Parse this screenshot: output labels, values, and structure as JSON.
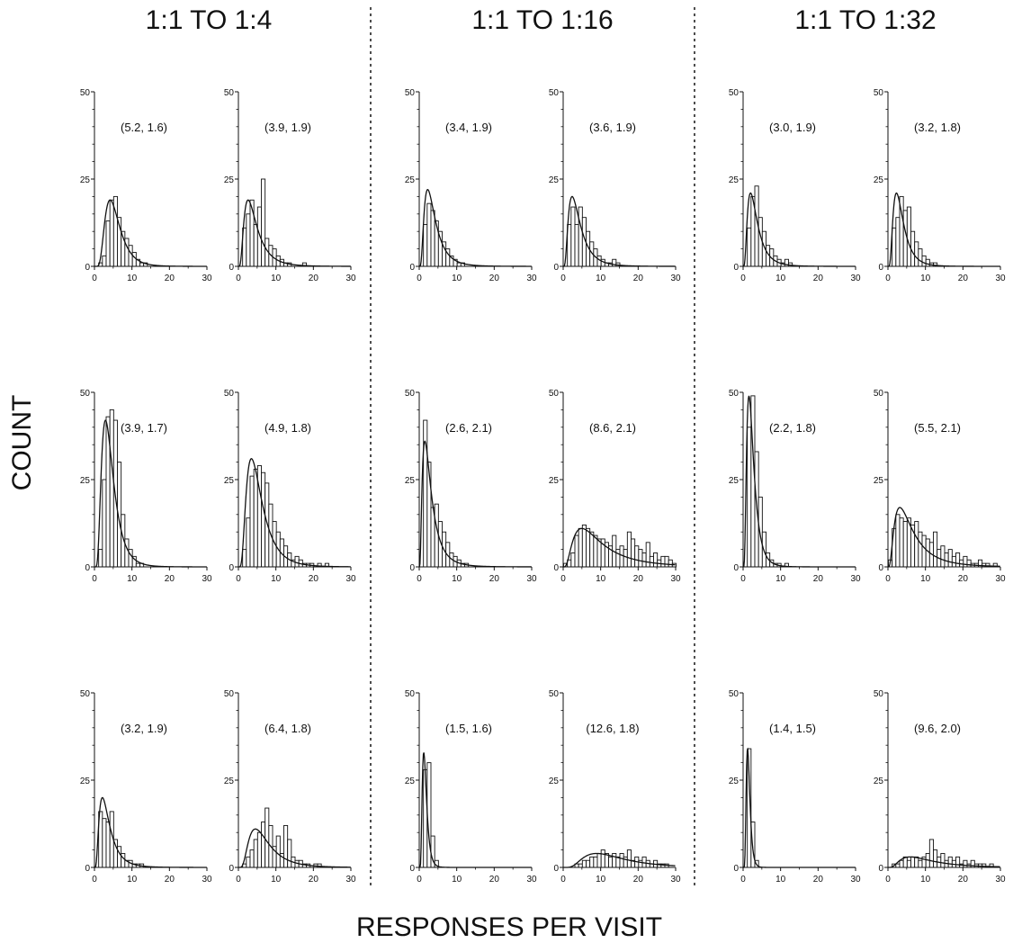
{
  "figure": {
    "column_titles": [
      "1:1 TO 1:4",
      "1:1 TO 1:16",
      "1:1 TO 1:32"
    ],
    "xlabel": "RESPONSES PER VISIT",
    "ylabel": "COUNT"
  },
  "chart_data": [
    {
      "type": "bar",
      "column": "1:1 TO 1:4",
      "annotation": "(5.2, 1.6)",
      "fit": {
        "peak": 19,
        "sigma": 1.6
      },
      "bins": [
        0,
        1,
        2,
        3,
        4,
        5,
        6,
        7,
        8,
        9,
        10,
        11,
        12,
        13,
        14,
        15
      ],
      "values": [
        0,
        1,
        3,
        13,
        19,
        20,
        14,
        10,
        8,
        6,
        4,
        2,
        1,
        1,
        0,
        0
      ],
      "xlim": [
        0,
        30
      ],
      "ylim": [
        0,
        50
      ],
      "xticks": [
        0,
        10,
        20,
        30
      ],
      "yticks": [
        0,
        25,
        50
      ]
    },
    {
      "type": "bar",
      "column": "1:1 TO 1:4",
      "annotation": "(3.9, 1.9)",
      "fit": {
        "peak": 19,
        "sigma": 1.9
      },
      "bins": [
        0,
        1,
        2,
        3,
        4,
        5,
        6,
        7,
        8,
        9,
        10,
        11,
        12,
        13,
        14,
        15,
        16,
        17,
        18
      ],
      "values": [
        0,
        11,
        15,
        19,
        12,
        17,
        25,
        8,
        6,
        5,
        3,
        2,
        1,
        1,
        0,
        0,
        0,
        1,
        0
      ],
      "xlim": [
        0,
        30
      ],
      "ylim": [
        0,
        50
      ],
      "xticks": [
        0,
        10,
        20,
        30
      ],
      "yticks": [
        0,
        25,
        50
      ]
    },
    {
      "type": "bar",
      "column": "1:1 TO 1:16",
      "annotation": "(3.4, 1.9)",
      "fit": {
        "peak": 22,
        "sigma": 1.9
      },
      "bins": [
        0,
        1,
        2,
        3,
        4,
        5,
        6,
        7,
        8,
        9,
        10,
        11,
        12,
        13,
        14
      ],
      "values": [
        0,
        12,
        18,
        16,
        13,
        10,
        7,
        5,
        3,
        2,
        1,
        1,
        0,
        0,
        0
      ],
      "xlim": [
        0,
        30
      ],
      "ylim": [
        0,
        50
      ],
      "xticks": [
        0,
        10,
        20,
        30
      ],
      "yticks": [
        0,
        25,
        50
      ]
    },
    {
      "type": "bar",
      "column": "1:1 TO 1:16",
      "annotation": "(3.6, 1.9)",
      "fit": {
        "peak": 20,
        "sigma": 1.9
      },
      "bins": [
        0,
        1,
        2,
        3,
        4,
        5,
        6,
        7,
        8,
        9,
        10,
        11,
        12,
        13,
        14,
        15
      ],
      "values": [
        0,
        12,
        17,
        12,
        17,
        14,
        10,
        7,
        5,
        3,
        2,
        1,
        1,
        2,
        1,
        0
      ],
      "xlim": [
        0,
        30
      ],
      "ylim": [
        0,
        50
      ],
      "xticks": [
        0,
        10,
        20,
        30
      ],
      "yticks": [
        0,
        25,
        50
      ]
    },
    {
      "type": "bar",
      "column": "1:1 TO 1:32",
      "annotation": "(3.0, 1.9)",
      "fit": {
        "peak": 21,
        "sigma": 1.9
      },
      "bins": [
        0,
        1,
        2,
        3,
        4,
        5,
        6,
        7,
        8,
        9,
        10,
        11,
        12,
        13,
        14
      ],
      "values": [
        0,
        11,
        20,
        23,
        14,
        10,
        6,
        5,
        3,
        2,
        1,
        2,
        1,
        0,
        0
      ],
      "xlim": [
        0,
        30
      ],
      "ylim": [
        0,
        50
      ],
      "xticks": [
        0,
        10,
        20,
        30
      ],
      "yticks": [
        0,
        25,
        50
      ]
    },
    {
      "type": "bar",
      "column": "1:1 TO 1:32",
      "annotation": "(3.2, 1.8)",
      "fit": {
        "peak": 21,
        "sigma": 1.8
      },
      "bins": [
        0,
        1,
        2,
        3,
        4,
        5,
        6,
        7,
        8,
        9,
        10,
        11,
        12,
        13
      ],
      "values": [
        0,
        11,
        14,
        20,
        16,
        17,
        10,
        7,
        5,
        3,
        2,
        1,
        1,
        0
      ],
      "xlim": [
        0,
        30
      ],
      "ylim": [
        0,
        50
      ],
      "xticks": [
        0,
        10,
        20,
        30
      ],
      "yticks": [
        0,
        25,
        50
      ]
    },
    {
      "type": "bar",
      "column": "1:1 TO 1:4",
      "annotation": "(3.9, 1.7)",
      "fit": {
        "peak": 42,
        "sigma": 1.7
      },
      "bins": [
        0,
        1,
        2,
        3,
        4,
        5,
        6,
        7,
        8,
        9,
        10,
        11,
        12,
        13
      ],
      "values": [
        0,
        5,
        25,
        43,
        45,
        42,
        30,
        15,
        8,
        5,
        3,
        1,
        1,
        0
      ],
      "xlim": [
        0,
        30
      ],
      "ylim": [
        0,
        50
      ],
      "xticks": [
        0,
        10,
        20,
        30
      ],
      "yticks": [
        0,
        25,
        50
      ]
    },
    {
      "type": "bar",
      "column": "1:1 TO 1:4",
      "annotation": "(4.9, 1.8)",
      "fit": {
        "peak": 31,
        "sigma": 1.8
      },
      "bins": [
        0,
        1,
        2,
        3,
        4,
        5,
        6,
        7,
        8,
        9,
        10,
        11,
        12,
        13,
        14,
        15,
        16,
        17,
        18,
        19,
        20,
        21,
        22,
        23
      ],
      "values": [
        0,
        5,
        14,
        26,
        28,
        29,
        27,
        24,
        18,
        13,
        10,
        8,
        6,
        4,
        2,
        3,
        2,
        1,
        1,
        1,
        0,
        1,
        0,
        1
      ],
      "xlim": [
        0,
        30
      ],
      "ylim": [
        0,
        50
      ],
      "xticks": [
        0,
        10,
        20,
        30
      ],
      "yticks": [
        0,
        25,
        50
      ]
    },
    {
      "type": "bar",
      "column": "1:1 TO 1:16",
      "annotation": "(2.6, 2.1)",
      "fit": {
        "peak": 36,
        "sigma": 2.1
      },
      "bins": [
        0,
        1,
        2,
        3,
        4,
        5,
        6,
        7,
        8,
        9,
        10,
        11,
        12,
        13,
        14,
        15
      ],
      "values": [
        0,
        42,
        30,
        17,
        18,
        13,
        10,
        7,
        4,
        3,
        2,
        1,
        1,
        0,
        0,
        0
      ],
      "xlim": [
        0,
        30
      ],
      "ylim": [
        0,
        50
      ],
      "xticks": [
        0,
        10,
        20,
        30
      ],
      "yticks": [
        0,
        25,
        50
      ]
    },
    {
      "type": "bar",
      "column": "1:1 TO 1:16",
      "annotation": "(8.6, 2.1)",
      "fit": {
        "peak": 11,
        "sigma": 2.1
      },
      "bins": [
        0,
        1,
        2,
        3,
        4,
        5,
        6,
        7,
        8,
        9,
        10,
        11,
        12,
        13,
        14,
        15,
        16,
        17,
        18,
        19,
        20,
        21,
        22,
        23,
        24,
        25,
        26,
        27,
        28,
        29
      ],
      "values": [
        1,
        2,
        4,
        9,
        11,
        12,
        11,
        10,
        9,
        8,
        8,
        7,
        6,
        9,
        5,
        6,
        5,
        10,
        8,
        6,
        5,
        4,
        7,
        3,
        4,
        2,
        3,
        3,
        2,
        1
      ],
      "xlim": [
        0,
        30
      ],
      "ylim": [
        0,
        50
      ],
      "xticks": [
        0,
        10,
        20,
        30
      ],
      "yticks": [
        0,
        25,
        50
      ]
    },
    {
      "type": "bar",
      "column": "1:1 TO 1:32",
      "annotation": "(2.2, 1.8)",
      "fit": {
        "peak": 49,
        "sigma": 1.8
      },
      "bins": [
        0,
        1,
        2,
        3,
        4,
        5,
        6,
        7,
        8,
        9,
        10,
        11,
        12
      ],
      "values": [
        0,
        40,
        49,
        33,
        20,
        10,
        4,
        2,
        1,
        1,
        0,
        1,
        0
      ],
      "xlim": [
        0,
        30
      ],
      "ylim": [
        0,
        50
      ],
      "xticks": [
        0,
        10,
        20,
        30
      ],
      "yticks": [
        0,
        25,
        50
      ]
    },
    {
      "type": "bar",
      "column": "1:1 TO 1:32",
      "annotation": "(5.5, 2.1)",
      "fit": {
        "peak": 17,
        "sigma": 2.1
      },
      "bins": [
        0,
        1,
        2,
        3,
        4,
        5,
        6,
        7,
        8,
        9,
        10,
        11,
        12,
        13,
        14,
        15,
        16,
        17,
        18,
        19,
        20,
        21,
        22,
        23,
        24,
        25,
        26,
        27,
        28,
        29
      ],
      "values": [
        2,
        11,
        15,
        14,
        13,
        14,
        12,
        13,
        10,
        9,
        8,
        7,
        10,
        5,
        6,
        4,
        5,
        3,
        4,
        2,
        3,
        2,
        1,
        1,
        2,
        1,
        1,
        0,
        1,
        0
      ],
      "xlim": [
        0,
        30
      ],
      "ylim": [
        0,
        50
      ],
      "xticks": [
        0,
        10,
        20,
        30
      ],
      "yticks": [
        0,
        25,
        50
      ]
    },
    {
      "type": "bar",
      "column": "1:1 TO 1:4",
      "annotation": "(3.2, 1.9)",
      "fit": {
        "peak": 20,
        "sigma": 1.9
      },
      "bins": [
        0,
        1,
        2,
        3,
        4,
        5,
        6,
        7,
        8,
        9,
        10,
        11,
        12,
        13
      ],
      "values": [
        0,
        16,
        14,
        13,
        16,
        8,
        6,
        4,
        2,
        2,
        1,
        1,
        1,
        0
      ],
      "xlim": [
        0,
        30
      ],
      "ylim": [
        0,
        50
      ],
      "xticks": [
        0,
        10,
        20,
        30
      ],
      "yticks": [
        0,
        25,
        50
      ]
    },
    {
      "type": "bar",
      "column": "1:1 TO 1:4",
      "annotation": "(6.4, 1.8)",
      "fit": {
        "peak": 11,
        "sigma": 1.8
      },
      "bins": [
        0,
        1,
        2,
        3,
        4,
        5,
        6,
        7,
        8,
        9,
        10,
        11,
        12,
        13,
        14,
        15,
        16,
        17,
        18,
        19,
        20,
        21
      ],
      "values": [
        0,
        1,
        3,
        5,
        8,
        10,
        13,
        17,
        12,
        6,
        9,
        4,
        12,
        8,
        3,
        2,
        2,
        1,
        1,
        0,
        1,
        1
      ],
      "xlim": [
        0,
        30
      ],
      "ylim": [
        0,
        50
      ],
      "xticks": [
        0,
        10,
        20,
        30
      ],
      "yticks": [
        0,
        25,
        50
      ]
    },
    {
      "type": "bar",
      "column": "1:1 TO 1:16",
      "annotation": "(1.5, 1.6)",
      "fit": {
        "peak": 33,
        "sigma": 1.6
      },
      "bins": [
        0,
        1,
        2,
        3,
        4,
        5
      ],
      "values": [
        0,
        28,
        30,
        9,
        2,
        0
      ],
      "xlim": [
        0,
        30
      ],
      "ylim": [
        0,
        50
      ],
      "xticks": [
        0,
        10,
        20,
        30
      ],
      "yticks": [
        0,
        25,
        50
      ]
    },
    {
      "type": "bar",
      "column": "1:1 TO 1:16",
      "annotation": "(12.6, 1.8)",
      "fit": {
        "peak": 4,
        "sigma": 1.8
      },
      "bins": [
        0,
        1,
        2,
        3,
        4,
        5,
        6,
        7,
        8,
        9,
        10,
        11,
        12,
        13,
        14,
        15,
        16,
        17,
        18,
        19,
        20,
        21,
        22,
        23,
        24,
        25,
        26,
        27,
        28
      ],
      "values": [
        0,
        0,
        0,
        1,
        1,
        2,
        2,
        3,
        3,
        4,
        5,
        4,
        3,
        4,
        3,
        4,
        3,
        5,
        2,
        3,
        2,
        3,
        2,
        1,
        2,
        1,
        1,
        1,
        0
      ],
      "xlim": [
        0,
        30
      ],
      "ylim": [
        0,
        50
      ],
      "xticks": [
        0,
        10,
        20,
        30
      ],
      "yticks": [
        0,
        25,
        50
      ]
    },
    {
      "type": "bar",
      "column": "1:1 TO 1:32",
      "annotation": "(1.4, 1.5)",
      "fit": {
        "peak": 34,
        "sigma": 1.5
      },
      "bins": [
        0,
        1,
        2,
        3,
        4
      ],
      "values": [
        0,
        34,
        13,
        2,
        0
      ],
      "xlim": [
        0,
        30
      ],
      "ylim": [
        0,
        50
      ],
      "xticks": [
        0,
        10,
        20,
        30
      ],
      "yticks": [
        0,
        25,
        50
      ]
    },
    {
      "type": "bar",
      "column": "1:1 TO 1:32",
      "annotation": "(9.6, 2.0)",
      "fit": {
        "peak": 3,
        "sigma": 2.0
      },
      "bins": [
        0,
        1,
        2,
        3,
        4,
        5,
        6,
        7,
        8,
        9,
        10,
        11,
        12,
        13,
        14,
        15,
        16,
        17,
        18,
        19,
        20,
        21,
        22,
        23,
        24,
        25,
        26,
        27,
        28,
        29
      ],
      "values": [
        0,
        1,
        1,
        2,
        3,
        2,
        3,
        3,
        2,
        3,
        4,
        8,
        5,
        3,
        4,
        2,
        3,
        2,
        3,
        1,
        2,
        1,
        2,
        1,
        1,
        1,
        0,
        1,
        0,
        0
      ],
      "xlim": [
        0,
        30
      ],
      "ylim": [
        0,
        50
      ],
      "xticks": [
        0,
        10,
        20,
        30
      ],
      "yticks": [
        0,
        25,
        50
      ]
    }
  ]
}
